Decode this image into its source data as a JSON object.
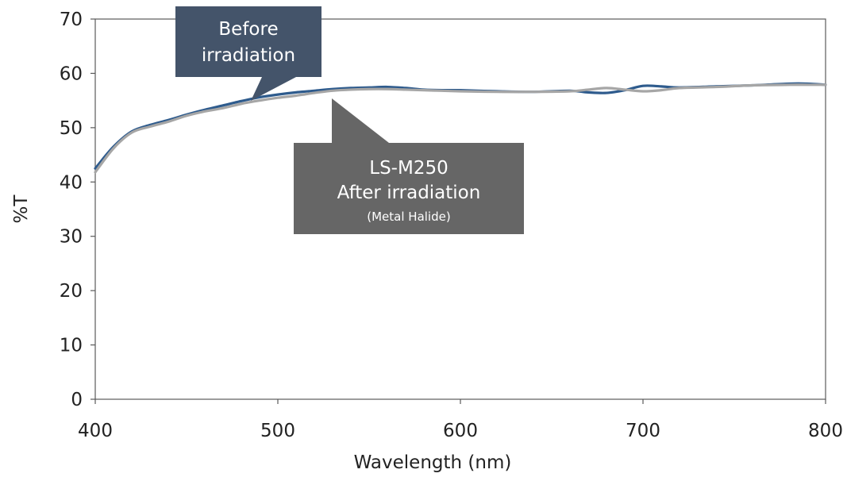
{
  "chart_data": {
    "type": "line",
    "title": "",
    "xlabel": "Wavelength (nm)",
    "ylabel": "%T",
    "xlim": [
      400,
      800
    ],
    "ylim": [
      0,
      70
    ],
    "x_ticks": [
      "400",
      "500",
      "600",
      "700",
      "800"
    ],
    "y_ticks": [
      "0",
      "10",
      "20",
      "30",
      "40",
      "50",
      "60",
      "70"
    ],
    "grid": false,
    "series": [
      {
        "name": "Before irradiation",
        "color": "#2e5b8d",
        "x": [
          400,
          410,
          420,
          430,
          440,
          450,
          460,
          470,
          480,
          490,
          500,
          510,
          520,
          530,
          540,
          550,
          560,
          570,
          580,
          590,
          600,
          620,
          640,
          660,
          670,
          680,
          690,
          700,
          710,
          720,
          740,
          760,
          780,
          790,
          800
        ],
        "y": [
          42.5,
          46.5,
          49.3,
          50.5,
          51.4,
          52.4,
          53.3,
          54.1,
          54.9,
          55.6,
          56.1,
          56.5,
          56.8,
          57.1,
          57.3,
          57.4,
          57.5,
          57.3,
          57.0,
          56.9,
          56.9,
          56.7,
          56.6,
          56.8,
          56.5,
          56.4,
          56.9,
          57.7,
          57.6,
          57.4,
          57.6,
          57.8,
          58.1,
          58.1,
          57.9
        ]
      },
      {
        "name": "LS-M250 After irradiation (Metal Halide)",
        "color": "#a6a6a6",
        "x": [
          400,
          410,
          420,
          430,
          440,
          450,
          460,
          470,
          480,
          490,
          500,
          510,
          520,
          530,
          540,
          550,
          560,
          570,
          580,
          590,
          600,
          620,
          640,
          660,
          670,
          680,
          690,
          700,
          710,
          720,
          740,
          760,
          780,
          790,
          800
        ],
        "y": [
          41.8,
          46.2,
          49.1,
          50.2,
          51.1,
          52.2,
          53.0,
          53.6,
          54.4,
          55.0,
          55.5,
          55.9,
          56.4,
          56.8,
          57.0,
          57.1,
          57.1,
          57.0,
          56.9,
          56.8,
          56.7,
          56.6,
          56.6,
          56.7,
          57.0,
          57.3,
          57.0,
          56.7,
          56.9,
          57.3,
          57.5,
          57.8,
          57.9,
          57.9,
          57.9
        ]
      }
    ],
    "annotations": [
      {
        "lines": [
          "Before",
          "irradiation"
        ],
        "box_color": "#44546a",
        "points_to_series": "Before irradiation"
      },
      {
        "lines": [
          "LS-M250",
          "After irradiation",
          "(Metal Halide)"
        ],
        "box_color": "#666666",
        "points_to_series": "LS-M250 After irradiation (Metal Halide)"
      }
    ]
  }
}
